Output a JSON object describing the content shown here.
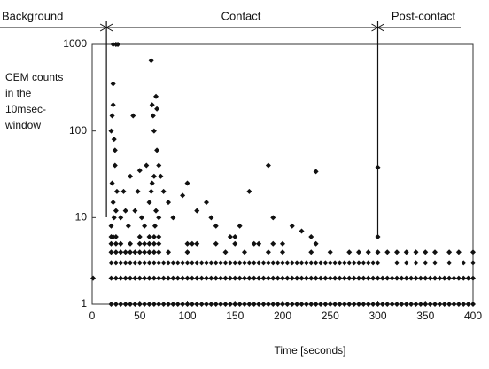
{
  "chart_data": {
    "type": "scatter",
    "y_label": [
      "CEM counts",
      "in the",
      "10msec-",
      "window"
    ],
    "x_label": "Time [seconds]",
    "phase_labels": [
      "Background",
      "Contact",
      "Post-contact"
    ],
    "phase_boundaries": [
      15,
      300
    ],
    "xlim": [
      0,
      400
    ],
    "xticks": [
      0,
      50,
      100,
      150,
      200,
      250,
      300,
      350,
      400
    ],
    "ylim": [
      1,
      1000
    ],
    "yticks": [
      1,
      10,
      100,
      1000
    ],
    "log_y": true,
    "grid": false,
    "series": [
      {
        "color": "#111111",
        "x": [
          20,
          25,
          30,
          35,
          40,
          45,
          50,
          55,
          60,
          65,
          70,
          75,
          80,
          85,
          90,
          95,
          100,
          105,
          110,
          115,
          120,
          125,
          130,
          135,
          140,
          145,
          150,
          155,
          160,
          165,
          170,
          175,
          180,
          185,
          190,
          195,
          200,
          205,
          210,
          215,
          220,
          225,
          230,
          235,
          240,
          245,
          250,
          255,
          260,
          265,
          270,
          275,
          280,
          285,
          290,
          295,
          300,
          305,
          310,
          315,
          320,
          325,
          330,
          335,
          340,
          345,
          350,
          355,
          360,
          365,
          370,
          375,
          380,
          385,
          390,
          395,
          400
        ],
        "values": [
          1,
          1,
          1,
          1,
          1,
          1,
          1,
          1,
          1,
          1,
          1,
          1,
          1,
          1,
          1,
          1,
          1,
          1,
          1,
          1,
          1,
          1,
          1,
          1,
          1,
          1,
          1,
          1,
          1,
          1,
          1,
          1,
          1,
          1,
          1,
          1,
          1,
          1,
          1,
          1,
          1,
          1,
          1,
          1,
          1,
          1,
          1,
          1,
          1,
          1,
          1,
          1,
          1,
          1,
          1,
          1,
          1,
          1,
          1,
          1,
          1,
          1,
          1,
          1,
          1,
          1,
          1,
          1,
          1,
          1,
          1,
          1,
          1,
          1,
          1,
          1,
          1
        ]
      },
      {
        "color": "#111111",
        "x": [
          1,
          20,
          25,
          30,
          35,
          40,
          45,
          50,
          55,
          60,
          65,
          70,
          75,
          80,
          85,
          90,
          95,
          100,
          105,
          110,
          115,
          120,
          125,
          130,
          135,
          140,
          145,
          150,
          155,
          160,
          165,
          170,
          175,
          180,
          185,
          190,
          195,
          200,
          205,
          210,
          215,
          220,
          225,
          230,
          235,
          240,
          245,
          250,
          255,
          260,
          265,
          270,
          275,
          280,
          285,
          290,
          295,
          300,
          305,
          310,
          315,
          320,
          325,
          330,
          335,
          340,
          345,
          350,
          355,
          360,
          365,
          370,
          375,
          380,
          385,
          390,
          395,
          400
        ],
        "values": [
          2,
          2,
          2,
          2,
          2,
          2,
          2,
          2,
          2,
          2,
          2,
          2,
          2,
          2,
          2,
          2,
          2,
          2,
          2,
          2,
          2,
          2,
          2,
          2,
          2,
          2,
          2,
          2,
          2,
          2,
          2,
          2,
          2,
          2,
          2,
          2,
          2,
          2,
          2,
          2,
          2,
          2,
          2,
          2,
          2,
          2,
          2,
          2,
          2,
          2,
          2,
          2,
          2,
          2,
          2,
          2,
          2,
          2,
          2,
          2,
          2,
          2,
          2,
          2,
          2,
          2,
          2,
          2,
          2,
          2,
          2,
          2,
          2,
          2,
          2,
          2,
          2,
          2
        ]
      },
      {
        "color": "#111111",
        "x": [
          20,
          25,
          30,
          35,
          40,
          45,
          50,
          55,
          60,
          65,
          70,
          75,
          80,
          85,
          90,
          95,
          100,
          105,
          110,
          115,
          120,
          125,
          130,
          135,
          140,
          145,
          150,
          155,
          160,
          165,
          170,
          175,
          180,
          185,
          190,
          195,
          200,
          205,
          210,
          215,
          220,
          225,
          230,
          235,
          240,
          245,
          250,
          255,
          260,
          265,
          270,
          275,
          280,
          285,
          290,
          295,
          300,
          320,
          330,
          340,
          350,
          360,
          375,
          390,
          400
        ],
        "values": [
          3,
          3,
          3,
          3,
          3,
          3,
          3,
          3,
          3,
          3,
          3,
          3,
          3,
          3,
          3,
          3,
          3,
          3,
          3,
          3,
          3,
          3,
          3,
          3,
          3,
          3,
          3,
          3,
          3,
          3,
          3,
          3,
          3,
          3,
          3,
          3,
          3,
          3,
          3,
          3,
          3,
          3,
          3,
          3,
          3,
          3,
          3,
          3,
          3,
          3,
          3,
          3,
          3,
          3,
          3,
          3,
          3,
          3,
          3,
          3,
          3,
          3,
          3,
          3,
          3
        ]
      },
      {
        "color": "#111111",
        "x": [
          20,
          25,
          30,
          35,
          40,
          45,
          50,
          55,
          60,
          65,
          70,
          80,
          100,
          140,
          160,
          185,
          200,
          230,
          250,
          270,
          280,
          290,
          300,
          310,
          320,
          330,
          340,
          350,
          360,
          375,
          385,
          400
        ],
        "values": [
          4,
          4,
          4,
          4,
          4,
          4,
          4,
          4,
          4,
          4,
          4,
          4,
          4,
          4,
          4,
          4,
          4,
          4,
          4,
          4,
          4,
          4,
          4,
          4,
          4,
          4,
          4,
          4,
          4,
          4,
          4,
          4
        ]
      },
      {
        "color": "#111111",
        "x": [
          20,
          25,
          30,
          40,
          50,
          55,
          60,
          65,
          70,
          100,
          110,
          130,
          150,
          170,
          190,
          235
        ],
        "values": [
          5,
          5,
          5,
          5,
          5,
          5,
          5,
          5,
          5,
          5,
          5,
          5,
          5,
          5,
          5,
          5
        ]
      },
      {
        "color": "#111111",
        "x": [
          20,
          22,
          25,
          50,
          60,
          65,
          70,
          150,
          230,
          300
        ],
        "values": [
          6,
          6,
          6,
          6,
          6,
          6,
          6,
          6,
          6,
          6
        ]
      },
      {
        "color": "#111111",
        "x": [
          20,
          21,
          22,
          22,
          23,
          24,
          21,
          22,
          23,
          20,
          25,
          22,
          27,
          24,
          26,
          25,
          30,
          33,
          35,
          38,
          40,
          43,
          45,
          48,
          50,
          52,
          55,
          57,
          60,
          62,
          63,
          65,
          62,
          63,
          64,
          65,
          67,
          68,
          68,
          70,
          67,
          66,
          70,
          72,
          75,
          80,
          85,
          95,
          100,
          105,
          110,
          120,
          125,
          130,
          145,
          155,
          165,
          175,
          185,
          190,
          200,
          210,
          220,
          235,
          300
        ],
        "values": [
          100,
          150,
          350,
          200,
          80,
          40,
          25,
          15,
          10,
          8,
          1000,
          1000,
          1000,
          60,
          20,
          12,
          10,
          20,
          12,
          8,
          30,
          150,
          12,
          20,
          35,
          10,
          8,
          40,
          15,
          20,
          25,
          30,
          650,
          200,
          150,
          100,
          250,
          180,
          60,
          40,
          12,
          8,
          10,
          30,
          20,
          15,
          10,
          18,
          25,
          5,
          12,
          15,
          10,
          8,
          6,
          8,
          20,
          5,
          40,
          10,
          5,
          8,
          7,
          34,
          38
        ]
      }
    ]
  }
}
